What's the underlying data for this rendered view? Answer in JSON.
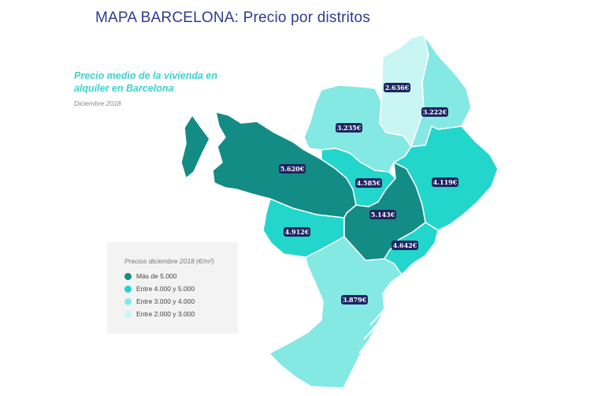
{
  "header": {
    "title": "MAPA BARCELONA: Precio por distritos",
    "subtitle": "Precio medio de la vivienda en alquiler en Barcelona",
    "date": "Diciembre 2018"
  },
  "legend": {
    "title": "Precios diciembre 2018 (€/m²)",
    "items": [
      {
        "label": "Más de 5.000",
        "color": "#138c86"
      },
      {
        "label": "Entre 4.000 y 5.000",
        "color": "#22d6cc"
      },
      {
        "label": "Entre 3.000 y 4.000",
        "color": "#84e8e3"
      },
      {
        "label": "Entre 2.000 y 3.000",
        "color": "#c9f5f2"
      }
    ]
  },
  "colors": {
    "label_bg": "#1d2460",
    "map_border": "#ffffff"
  },
  "districts": [
    {
      "id": "horta-guinardo",
      "price": "3.235€",
      "color": "#84e8e3"
    },
    {
      "id": "nou-barris",
      "price": "2.636€",
      "color": "#c9f5f2"
    },
    {
      "id": "sant-andreu",
      "price": "3.222€",
      "color": "#84e8e3"
    },
    {
      "id": "sarria-sant-gervasi",
      "price": "5.620€",
      "color": "#138c86"
    },
    {
      "id": "gracia",
      "price": "4.585€",
      "color": "#22d6cc"
    },
    {
      "id": "sant-marti",
      "price": "4.119€",
      "color": "#22d6cc"
    },
    {
      "id": "eixample",
      "price": "5.143€",
      "color": "#138c86"
    },
    {
      "id": "les-corts",
      "price": "4.912€",
      "color": "#22d6cc"
    },
    {
      "id": "ciutat-vella",
      "price": "4.642€",
      "color": "#22d6cc"
    },
    {
      "id": "sants-montjuic",
      "price": "3.879€",
      "color": "#84e8e3"
    }
  ]
}
